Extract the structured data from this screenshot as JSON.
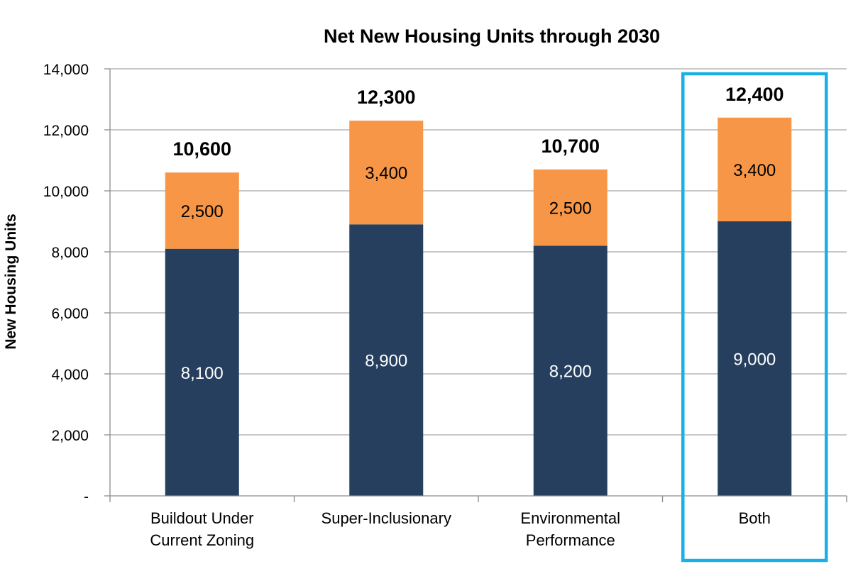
{
  "chart_data": {
    "type": "bar",
    "stacked": true,
    "title": "Net New Housing Units through 2030",
    "xlabel": "",
    "ylabel": "New Housing Units",
    "ylim": [
      0,
      14000
    ],
    "yticks": [
      0,
      2000,
      4000,
      6000,
      8000,
      10000,
      12000,
      14000
    ],
    "ytick_labels": [
      "-",
      "2,000",
      "4,000",
      "6,000",
      "8,000",
      "10,000",
      "12,000",
      "14,000"
    ],
    "grid": true,
    "categories": [
      [
        "Buildout Under",
        "Current Zoning"
      ],
      [
        "Super-Inclusionary"
      ],
      [
        "Environmental",
        "Performance"
      ],
      [
        "Both"
      ]
    ],
    "series": [
      {
        "color": "#263f5f",
        "values": [
          8100,
          8900,
          8200,
          9000
        ],
        "labels": [
          "8,100",
          "8,900",
          "8,200",
          "9,000"
        ]
      },
      {
        "color": "#f79646",
        "values": [
          2500,
          3400,
          2500,
          3400
        ],
        "labels": [
          "2,500",
          "3,400",
          "2,500",
          "3,400"
        ]
      }
    ],
    "totals": [
      10600,
      12300,
      10700,
      12400
    ],
    "total_labels": [
      "10,600",
      "12,300",
      "10,700",
      "12,400"
    ],
    "highlight": {
      "category_index": 3,
      "color": "#1aafe6"
    }
  }
}
